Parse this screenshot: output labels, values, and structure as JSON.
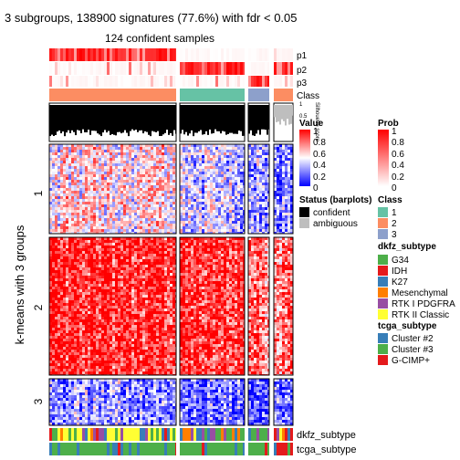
{
  "chart_data": {
    "type": "heatmap",
    "title": "3 subgroups, 138900 signatures (77.6%) with fdr < 0.05",
    "subtitle": "124 confident samples",
    "ylabel": "k-means with 3 groups",
    "row_groups": [
      "1",
      "2",
      "3"
    ],
    "column_groups": [
      {
        "name": "2",
        "share_of_columns": 0.54,
        "class": 2
      },
      {
        "name": "1",
        "share_of_columns": 0.29,
        "class": 1
      },
      {
        "name": "3",
        "share_of_columns": 0.1,
        "class": 3
      },
      {
        "name": "4",
        "share_of_columns": 0.07,
        "class": 2
      }
    ],
    "top_annotations": [
      "p1",
      "p2",
      "p3",
      "Class",
      "Silhouette score"
    ],
    "silhouette_ticks": [
      "1",
      "0.5",
      "0"
    ],
    "bottom_annotations": [
      "dkfz_subtype",
      "tcga_subtype"
    ],
    "legends": {
      "value": {
        "title": "Value",
        "ticks": [
          "1",
          "0.8",
          "0.6",
          "0.4",
          "0.2",
          "0"
        ],
        "colors": [
          "#ff0000",
          "#ffffff",
          "#0000ff"
        ]
      },
      "prob": {
        "title": "Prob",
        "ticks": [
          "1",
          "0.8",
          "0.6",
          "0.4",
          "0.2",
          "0"
        ],
        "colors": [
          "#ff0000",
          "#ffffff"
        ]
      },
      "status": {
        "title": "Status (barplots)",
        "items": [
          {
            "label": "confident",
            "color": "#000000"
          },
          {
            "label": "ambiguous",
            "color": "#bebebe"
          }
        ]
      },
      "class": {
        "title": "Class",
        "items": [
          {
            "label": "1",
            "color": "#66c2a5"
          },
          {
            "label": "2",
            "color": "#fc8d62"
          },
          {
            "label": "3",
            "color": "#8da0cb"
          }
        ]
      },
      "dkfz_subtype": {
        "title": "dkfz_subtype",
        "items": [
          {
            "label": "G34",
            "color": "#4daf4a"
          },
          {
            "label": "IDH",
            "color": "#e41a1c"
          },
          {
            "label": "K27",
            "color": "#377eb8"
          },
          {
            "label": "Mesenchymal",
            "color": "#ff7f00"
          },
          {
            "label": "RTK I PDGFRA",
            "color": "#984ea3"
          },
          {
            "label": "RTK II Classic",
            "color": "#ffff33"
          }
        ]
      },
      "tcga_subtype": {
        "title": "tcga_subtype",
        "items": [
          {
            "label": "Cluster #2",
            "color": "#377eb8"
          },
          {
            "label": "Cluster #3",
            "color": "#4daf4a"
          },
          {
            "label": "G-CIMP+",
            "color": "#e41a1c"
          }
        ]
      }
    }
  }
}
